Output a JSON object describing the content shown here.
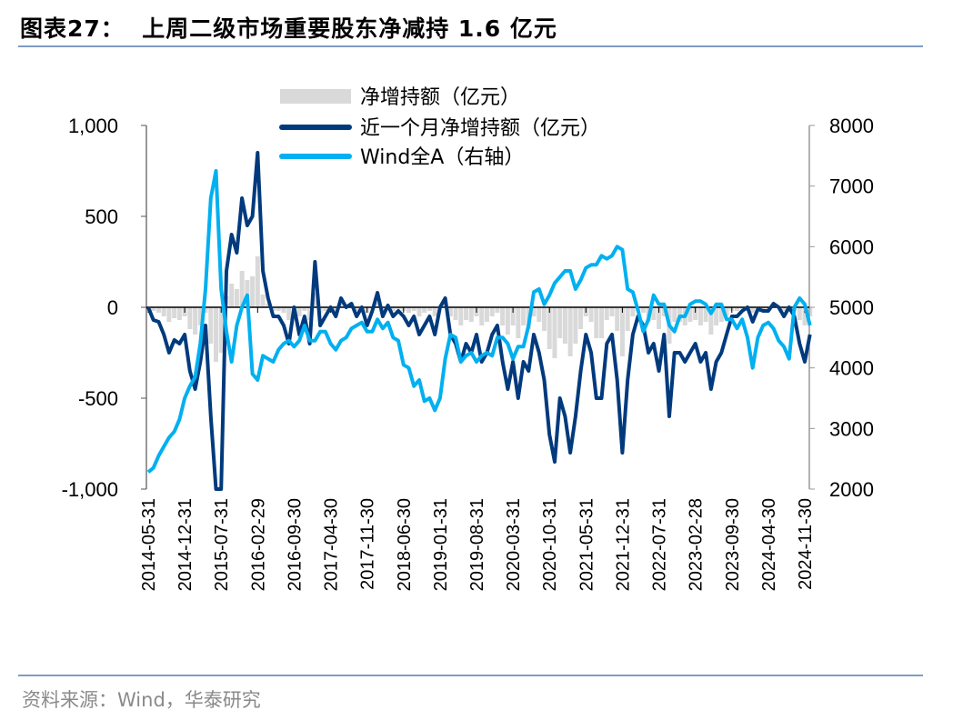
{
  "title": "图表27：  上周二级市场重要股东净减持 1.6 亿元",
  "source": "资料来源：Wind，华泰研究",
  "colors": {
    "bars": "#d9d9d9",
    "monthly": "#003a7d",
    "winda": "#00b0f0",
    "rule": "#7f9cc4"
  },
  "chart_data": {
    "type": "bar+line",
    "legend_position": "top-center",
    "grid": false,
    "series": [
      {
        "name": "净增持额（亿元）",
        "type": "bar",
        "axis": "left"
      },
      {
        "name": "近一个月净增持额（亿元）",
        "type": "line",
        "axis": "left"
      },
      {
        "name": "Wind全A（右轴）",
        "type": "line",
        "axis": "right"
      }
    ],
    "left_axis": {
      "ylim": [
        -1000,
        1000
      ],
      "ticks": [
        "1,000",
        "500",
        "0",
        "-500",
        "-1,000"
      ]
    },
    "right_axis": {
      "ylim": [
        2000,
        8000
      ],
      "ticks": [
        "8000",
        "7000",
        "6000",
        "5000",
        "4000",
        "3000",
        "2000"
      ]
    },
    "x_tick_labels": [
      "2014-05-31",
      "2014-12-31",
      "2015-07-31",
      "2016-02-29",
      "2016-09-30",
      "2017-04-30",
      "2017-11-30",
      "2018-06-30",
      "2019-01-31",
      "2019-08-31",
      "2020-03-31",
      "2020-10-31",
      "2021-05-31",
      "2021-12-31",
      "2022-07-31",
      "2023-02-28",
      "2023-09-30",
      "2024-04-30",
      "2024-11-30"
    ],
    "x": [
      "2014-05",
      "2014-06",
      "2014-07",
      "2014-08",
      "2014-09",
      "2014-10",
      "2014-11",
      "2014-12",
      "2015-01",
      "2015-02",
      "2015-03",
      "2015-04",
      "2015-05",
      "2015-06",
      "2015-07",
      "2015-08",
      "2015-09",
      "2015-10",
      "2015-11",
      "2015-12",
      "2016-01",
      "2016-02",
      "2016-03",
      "2016-04",
      "2016-05",
      "2016-06",
      "2016-07",
      "2016-08",
      "2016-09",
      "2016-10",
      "2016-11",
      "2016-12",
      "2017-01",
      "2017-02",
      "2017-03",
      "2017-04",
      "2017-05",
      "2017-06",
      "2017-07",
      "2017-08",
      "2017-09",
      "2017-10",
      "2017-11",
      "2017-12",
      "2018-01",
      "2018-02",
      "2018-03",
      "2018-04",
      "2018-05",
      "2018-06",
      "2018-07",
      "2018-08",
      "2018-09",
      "2018-10",
      "2018-11",
      "2018-12",
      "2019-01",
      "2019-02",
      "2019-03",
      "2019-04",
      "2019-05",
      "2019-06",
      "2019-07",
      "2019-08",
      "2019-09",
      "2019-10",
      "2019-11",
      "2019-12",
      "2020-01",
      "2020-02",
      "2020-03",
      "2020-04",
      "2020-05",
      "2020-06",
      "2020-07",
      "2020-08",
      "2020-09",
      "2020-10",
      "2020-11",
      "2020-12",
      "2021-01",
      "2021-02",
      "2021-03",
      "2021-04",
      "2021-05",
      "2021-06",
      "2021-07",
      "2021-08",
      "2021-09",
      "2021-10",
      "2021-11",
      "2021-12",
      "2022-01",
      "2022-02",
      "2022-03",
      "2022-04",
      "2022-05",
      "2022-06",
      "2022-07",
      "2022-08",
      "2022-09",
      "2022-10",
      "2022-11",
      "2022-12",
      "2023-01",
      "2023-02",
      "2023-03",
      "2023-04",
      "2023-05",
      "2023-06",
      "2023-07",
      "2023-08",
      "2023-09",
      "2023-10",
      "2023-11",
      "2023-12",
      "2024-01",
      "2024-02",
      "2024-03",
      "2024-04",
      "2024-05",
      "2024-06",
      "2024-07",
      "2024-08",
      "2024-09",
      "2024-10",
      "2024-11",
      "2024-12"
    ],
    "net_increase": [
      0,
      -20,
      -30,
      -50,
      -80,
      -60,
      -70,
      -50,
      -120,
      -150,
      -100,
      -30,
      -200,
      -300,
      -250,
      60,
      130,
      100,
      200,
      150,
      170,
      280,
      70,
      20,
      -20,
      -20,
      -30,
      -70,
      0,
      -50,
      -20,
      -70,
      80,
      -30,
      -20,
      0,
      -20,
      20,
      0,
      10,
      -20,
      0,
      -30,
      -10,
      30,
      -20,
      0,
      -20,
      -10,
      -20,
      -30,
      -20,
      -50,
      -30,
      -20,
      -50,
      0,
      20,
      -50,
      -70,
      -100,
      -70,
      -80,
      -50,
      -100,
      -80,
      -50,
      -30,
      -100,
      -150,
      -100,
      -170,
      -100,
      -120,
      -50,
      -80,
      -130,
      -230,
      -280,
      -170,
      -200,
      -270,
      -200,
      -120,
      -50,
      -80,
      -170,
      -170,
      -70,
      -50,
      -130,
      -270,
      -130,
      -50,
      -20,
      -30,
      -80,
      -70,
      -120,
      -50,
      -200,
      -80,
      -80,
      -100,
      -80,
      -70,
      -100,
      -80,
      -150,
      -100,
      -80,
      -50,
      -20,
      -20,
      -10,
      0,
      -30,
      0,
      -10,
      -10,
      10,
      0,
      -20,
      0,
      -20,
      -70,
      -100,
      -50
    ],
    "monthly_net_increase": [
      0,
      -70,
      -80,
      -150,
      -250,
      -180,
      -200,
      -150,
      -350,
      -450,
      -300,
      -100,
      -600,
      -1000,
      -1000,
      200,
      400,
      300,
      600,
      450,
      500,
      850,
      200,
      50,
      -50,
      -50,
      -100,
      -200,
      0,
      -150,
      -50,
      -200,
      250,
      -100,
      -50,
      0,
      -50,
      50,
      0,
      20,
      -50,
      0,
      -100,
      -20,
      80,
      -50,
      10,
      -50,
      -20,
      -50,
      -100,
      -50,
      -150,
      -100,
      -50,
      -150,
      0,
      50,
      -150,
      -200,
      -300,
      -200,
      -250,
      -150,
      -300,
      -250,
      -150,
      -100,
      -300,
      -450,
      -300,
      -500,
      -300,
      -350,
      -150,
      -250,
      -400,
      -700,
      -850,
      -500,
      -600,
      -800,
      -600,
      -350,
      -150,
      -250,
      -500,
      -500,
      -200,
      -150,
      -400,
      -800,
      -400,
      -150,
      -50,
      -100,
      -250,
      -200,
      -350,
      -150,
      -600,
      -250,
      -250,
      -300,
      -250,
      -200,
      -300,
      -250,
      -450,
      -300,
      -250,
      -150,
      -50,
      -50,
      -20,
      0,
      -80,
      -10,
      -20,
      -20,
      20,
      0,
      -50,
      0,
      -50,
      -200,
      -300,
      -150
    ],
    "wind_all_a": [
      2280,
      2350,
      2550,
      2700,
      2850,
      2950,
      3150,
      3500,
      3700,
      3850,
      4400,
      5300,
      6800,
      7250,
      5300,
      4600,
      4100,
      4700,
      5000,
      5200,
      3900,
      3800,
      4200,
      4150,
      4100,
      4300,
      4400,
      4450,
      4350,
      4450,
      4700,
      4450,
      4450,
      4600,
      4600,
      4400,
      4300,
      4450,
      4500,
      4650,
      4700,
      4750,
      4600,
      4600,
      4800,
      4650,
      4750,
      4500,
      4450,
      4050,
      4000,
      3700,
      3800,
      3450,
      3500,
      3300,
      3500,
      4150,
      4550,
      4500,
      4100,
      4200,
      4250,
      4100,
      4200,
      4250,
      4200,
      4500,
      4500,
      4400,
      4150,
      4350,
      4350,
      4700,
      5250,
      5300,
      5050,
      5200,
      5400,
      5500,
      5600,
      5600,
      5300,
      5450,
      5650,
      5700,
      5700,
      5850,
      5800,
      5850,
      6000,
      5950,
      5300,
      5250,
      4950,
      4600,
      4800,
      5200,
      5050,
      5050,
      4700,
      4600,
      4850,
      4850,
      5050,
      5100,
      5100,
      5050,
      4900,
      5050,
      5050,
      4800,
      4800,
      4650,
      4800,
      4500,
      4000,
      4500,
      4700,
      4750,
      4650,
      4450,
      4350,
      4150,
      5000,
      5150,
      5050,
      4700
    ]
  }
}
